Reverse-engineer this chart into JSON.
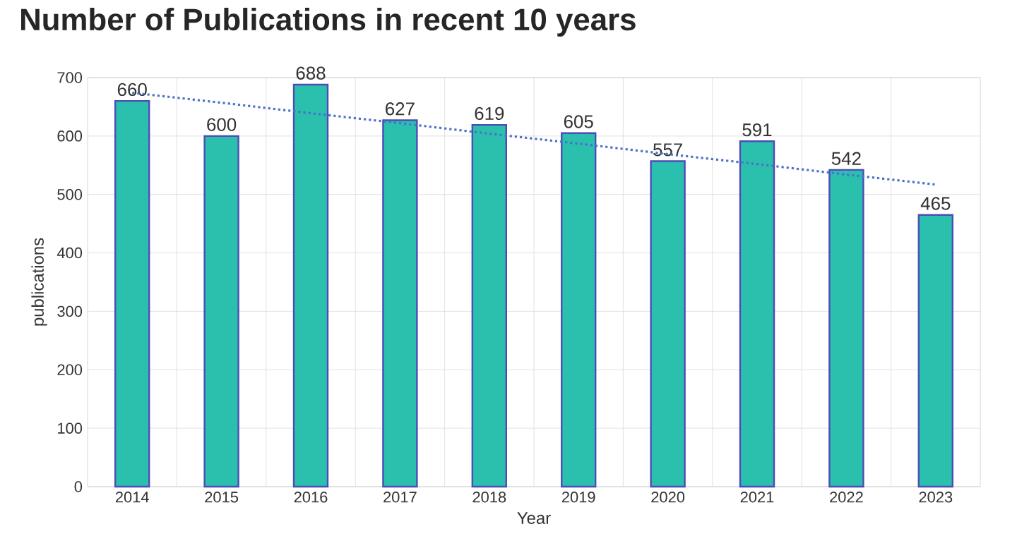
{
  "chart_data": {
    "type": "bar",
    "title": "Number of Publications in recent 10 years",
    "xlabel": "Year",
    "ylabel": "publications",
    "categories": [
      "2014",
      "2015",
      "2016",
      "2017",
      "2018",
      "2019",
      "2020",
      "2021",
      "2022",
      "2023"
    ],
    "ylim": [
      0,
      700
    ],
    "yticks": [
      0,
      100,
      200,
      300,
      400,
      500,
      600,
      700
    ],
    "grid": true,
    "series": [
      {
        "color": "#2bbfae",
        "values": [
          660,
          600,
          688,
          627,
          619,
          605,
          557,
          591,
          542,
          465
        ],
        "value_labels": [
          "660",
          "600",
          "688",
          "627",
          "619",
          "605",
          "557",
          "591",
          "542",
          "465"
        ]
      },
      {
        "type": "line",
        "color": "#4a72c8",
        "line_style": "dotted",
        "values": [
          674,
          657,
          639,
          622,
          604,
          587,
          569,
          552,
          534,
          517
        ]
      }
    ]
  }
}
